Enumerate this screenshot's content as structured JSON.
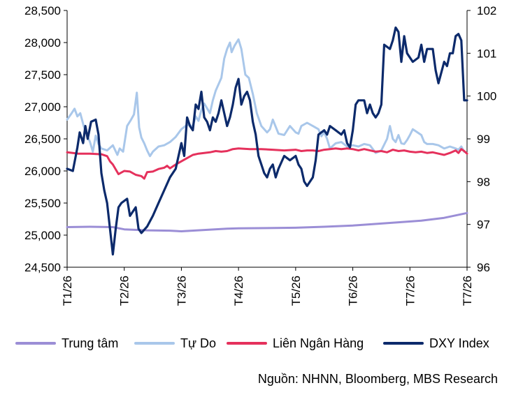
{
  "chart_data": {
    "type": "line",
    "x_ticks": [
      "T1/26",
      "T2/26",
      "T3/26",
      "T4/26",
      "T5/26",
      "T6/26",
      "T7/26",
      "T7/26"
    ],
    "y_left": {
      "ylim": [
        24500,
        28500
      ],
      "ticks": [
        "24,500",
        "25,000",
        "25,500",
        "26,000",
        "26,500",
        "27,000",
        "27,500",
        "28,000",
        "28,500"
      ]
    },
    "y_right": {
      "ylim": [
        96,
        102
      ],
      "ticks": [
        "96",
        "97",
        "98",
        "99",
        "100",
        "101",
        "102"
      ]
    },
    "x_range": [
      0,
      7
    ],
    "grid": false,
    "legend_position": "bottom",
    "series": [
      {
        "name": "Trung tâm",
        "axis": "left",
        "color": "#9b8ed6",
        "points": [
          [
            0,
            25125
          ],
          [
            0.4,
            25130
          ],
          [
            0.8,
            25125
          ],
          [
            1.0,
            25090
          ],
          [
            1.4,
            25075
          ],
          [
            1.8,
            25070
          ],
          [
            2.0,
            25060
          ],
          [
            2.4,
            25080
          ],
          [
            2.8,
            25100
          ],
          [
            3.0,
            25105
          ],
          [
            3.5,
            25110
          ],
          [
            4.0,
            25115
          ],
          [
            4.5,
            25130
          ],
          [
            5.0,
            25150
          ],
          [
            5.5,
            25180
          ],
          [
            5.8,
            25200
          ],
          [
            6.2,
            25225
          ],
          [
            6.6,
            25270
          ],
          [
            7.0,
            25345
          ]
        ]
      },
      {
        "name": "Tự Do",
        "axis": "left",
        "color": "#a9c7ea",
        "points": [
          [
            0,
            26800
          ],
          [
            0.08,
            26900
          ],
          [
            0.13,
            26970
          ],
          [
            0.18,
            26850
          ],
          [
            0.23,
            26900
          ],
          [
            0.29,
            26700
          ],
          [
            0.33,
            26600
          ],
          [
            0.4,
            26450
          ],
          [
            0.45,
            26300
          ],
          [
            0.5,
            26550
          ],
          [
            0.55,
            26420
          ],
          [
            0.6,
            26350
          ],
          [
            0.7,
            26320
          ],
          [
            0.8,
            26400
          ],
          [
            0.88,
            26250
          ],
          [
            0.92,
            26350
          ],
          [
            0.98,
            26300
          ],
          [
            1.05,
            26700
          ],
          [
            1.12,
            26800
          ],
          [
            1.17,
            26880
          ],
          [
            1.22,
            27220
          ],
          [
            1.26,
            26680
          ],
          [
            1.3,
            26520
          ],
          [
            1.35,
            26430
          ],
          [
            1.4,
            26320
          ],
          [
            1.45,
            26230
          ],
          [
            1.5,
            26300
          ],
          [
            1.6,
            26380
          ],
          [
            1.7,
            26400
          ],
          [
            1.8,
            26450
          ],
          [
            1.9,
            26530
          ],
          [
            2.0,
            26650
          ],
          [
            2.1,
            26720
          ],
          [
            2.2,
            26700
          ],
          [
            2.25,
            26850
          ],
          [
            2.3,
            26780
          ],
          [
            2.35,
            26950
          ],
          [
            2.4,
            27050
          ],
          [
            2.5,
            26900
          ],
          [
            2.55,
            27100
          ],
          [
            2.6,
            27250
          ],
          [
            2.7,
            27450
          ],
          [
            2.75,
            27750
          ],
          [
            2.8,
            27900
          ],
          [
            2.85,
            28000
          ],
          [
            2.88,
            27850
          ],
          [
            2.93,
            27950
          ],
          [
            3.0,
            28050
          ],
          [
            3.05,
            27900
          ],
          [
            3.12,
            27500
          ],
          [
            3.18,
            27450
          ],
          [
            3.25,
            27200
          ],
          [
            3.32,
            26900
          ],
          [
            3.4,
            26700
          ],
          [
            3.5,
            26600
          ],
          [
            3.55,
            26650
          ],
          [
            3.6,
            26800
          ],
          [
            3.7,
            26580
          ],
          [
            3.8,
            26560
          ],
          [
            3.9,
            26700
          ],
          [
            4.0,
            26600
          ],
          [
            4.05,
            26580
          ],
          [
            4.1,
            26700
          ],
          [
            4.2,
            26750
          ],
          [
            4.3,
            26700
          ],
          [
            4.4,
            26650
          ],
          [
            4.45,
            26540
          ],
          [
            4.5,
            26600
          ],
          [
            4.55,
            26500
          ],
          [
            4.6,
            26350
          ],
          [
            4.7,
            26430
          ],
          [
            4.8,
            26450
          ],
          [
            4.9,
            26380
          ],
          [
            5.0,
            26400
          ],
          [
            5.1,
            26380
          ],
          [
            5.2,
            26420
          ],
          [
            5.3,
            26400
          ],
          [
            5.4,
            26280
          ],
          [
            5.5,
            26320
          ],
          [
            5.6,
            26500
          ],
          [
            5.65,
            26700
          ],
          [
            5.7,
            26500
          ],
          [
            5.75,
            26450
          ],
          [
            5.8,
            26560
          ],
          [
            5.85,
            26430
          ],
          [
            5.9,
            26420
          ],
          [
            5.95,
            26480
          ],
          [
            6.0,
            26560
          ],
          [
            6.05,
            26650
          ],
          [
            6.1,
            26620
          ],
          [
            6.2,
            26560
          ],
          [
            6.25,
            26450
          ],
          [
            6.3,
            26420
          ],
          [
            6.4,
            26420
          ],
          [
            6.5,
            26400
          ],
          [
            6.6,
            26350
          ],
          [
            6.7,
            26380
          ],
          [
            6.8,
            26350
          ],
          [
            6.85,
            26330
          ],
          [
            6.9,
            26380
          ],
          [
            6.95,
            26300
          ]
        ]
      },
      {
        "name": "Liên Ngân Hàng",
        "axis": "left",
        "color": "#e5315c",
        "points": [
          [
            0,
            26290
          ],
          [
            0.2,
            26270
          ],
          [
            0.4,
            26270
          ],
          [
            0.6,
            26260
          ],
          [
            0.7,
            26230
          ],
          [
            0.75,
            26150
          ],
          [
            0.8,
            26100
          ],
          [
            0.9,
            25950
          ],
          [
            1.0,
            26000
          ],
          [
            1.1,
            25990
          ],
          [
            1.2,
            25940
          ],
          [
            1.3,
            25920
          ],
          [
            1.35,
            25880
          ],
          [
            1.4,
            25980
          ],
          [
            1.5,
            25990
          ],
          [
            1.6,
            26030
          ],
          [
            1.7,
            26050
          ],
          [
            1.75,
            26080
          ],
          [
            1.8,
            26040
          ],
          [
            1.9,
            26100
          ],
          [
            2.0,
            26150
          ],
          [
            2.1,
            26200
          ],
          [
            2.2,
            26250
          ],
          [
            2.3,
            26270
          ],
          [
            2.4,
            26280
          ],
          [
            2.5,
            26290
          ],
          [
            2.6,
            26310
          ],
          [
            2.7,
            26300
          ],
          [
            2.8,
            26310
          ],
          [
            2.9,
            26340
          ],
          [
            3.0,
            26350
          ],
          [
            3.2,
            26340
          ],
          [
            3.4,
            26340
          ],
          [
            3.6,
            26330
          ],
          [
            3.8,
            26320
          ],
          [
            4.0,
            26330
          ],
          [
            4.1,
            26310
          ],
          [
            4.2,
            26320
          ],
          [
            4.3,
            26320
          ],
          [
            4.4,
            26310
          ],
          [
            4.5,
            26330
          ],
          [
            4.6,
            26340
          ],
          [
            4.7,
            26350
          ],
          [
            4.8,
            26340
          ],
          [
            4.9,
            26350
          ],
          [
            5.0,
            26340
          ],
          [
            5.1,
            26320
          ],
          [
            5.2,
            26340
          ],
          [
            5.3,
            26320
          ],
          [
            5.4,
            26300
          ],
          [
            5.5,
            26310
          ],
          [
            5.6,
            26290
          ],
          [
            5.7,
            26330
          ],
          [
            5.8,
            26310
          ],
          [
            5.9,
            26320
          ],
          [
            6.0,
            26300
          ],
          [
            6.1,
            26290
          ],
          [
            6.2,
            26300
          ],
          [
            6.3,
            26280
          ],
          [
            6.4,
            26290
          ],
          [
            6.5,
            26270
          ],
          [
            6.6,
            26250
          ],
          [
            6.7,
            26280
          ],
          [
            6.8,
            26320
          ],
          [
            6.85,
            26280
          ],
          [
            6.9,
            26340
          ],
          [
            6.95,
            26310
          ],
          [
            7.0,
            26270
          ]
        ]
      },
      {
        "name": "DXY Index",
        "axis": "right",
        "color": "#0c2a6b",
        "points": [
          [
            0,
            98.3
          ],
          [
            0.1,
            98.25
          ],
          [
            0.18,
            98.8
          ],
          [
            0.22,
            99.15
          ],
          [
            0.28,
            98.9
          ],
          [
            0.32,
            99.3
          ],
          [
            0.36,
            99.0
          ],
          [
            0.42,
            99.4
          ],
          [
            0.5,
            99.45
          ],
          [
            0.55,
            99.1
          ],
          [
            0.6,
            98.2
          ],
          [
            0.65,
            97.8
          ],
          [
            0.7,
            97.5
          ],
          [
            0.8,
            96.3
          ],
          [
            0.85,
            96.9
          ],
          [
            0.9,
            97.4
          ],
          [
            0.95,
            97.5
          ],
          [
            1.05,
            97.6
          ],
          [
            1.1,
            97.2
          ],
          [
            1.2,
            97.4
          ],
          [
            1.25,
            96.9
          ],
          [
            1.3,
            96.8
          ],
          [
            1.4,
            96.95
          ],
          [
            1.5,
            97.2
          ],
          [
            1.6,
            97.5
          ],
          [
            1.7,
            97.8
          ],
          [
            1.8,
            98.1
          ],
          [
            1.9,
            98.3
          ],
          [
            2.0,
            98.9
          ],
          [
            2.05,
            98.6
          ],
          [
            2.1,
            99.5
          ],
          [
            2.15,
            99.3
          ],
          [
            2.2,
            99.2
          ],
          [
            2.25,
            99.8
          ],
          [
            2.3,
            99.7
          ],
          [
            2.35,
            100.1
          ],
          [
            2.4,
            99.5
          ],
          [
            2.45,
            99.4
          ],
          [
            2.5,
            99.2
          ],
          [
            2.55,
            99.5
          ],
          [
            2.6,
            99.4
          ],
          [
            2.65,
            99.6
          ],
          [
            2.7,
            99.9
          ],
          [
            2.75,
            99.6
          ],
          [
            2.8,
            99.3
          ],
          [
            2.85,
            99.5
          ],
          [
            2.9,
            99.8
          ],
          [
            2.95,
            100.2
          ],
          [
            3.0,
            100.4
          ],
          [
            3.05,
            99.8
          ],
          [
            3.1,
            100.0
          ],
          [
            3.15,
            100.1
          ],
          [
            3.2,
            99.9
          ],
          [
            3.25,
            99.4
          ],
          [
            3.3,
            99.1
          ],
          [
            3.35,
            98.6
          ],
          [
            3.4,
            98.4
          ],
          [
            3.45,
            98.2
          ],
          [
            3.5,
            98.1
          ],
          [
            3.55,
            98.3
          ],
          [
            3.6,
            98.4
          ],
          [
            3.65,
            98.1
          ],
          [
            3.7,
            98.3
          ],
          [
            3.8,
            98.6
          ],
          [
            3.9,
            98.5
          ],
          [
            4.0,
            98.6
          ],
          [
            4.05,
            98.4
          ],
          [
            4.1,
            98.3
          ],
          [
            4.15,
            98.0
          ],
          [
            4.2,
            97.9
          ],
          [
            4.3,
            98.1
          ],
          [
            4.35,
            98.5
          ],
          [
            4.4,
            99.1
          ],
          [
            4.5,
            99.2
          ],
          [
            4.55,
            99.1
          ],
          [
            4.6,
            99.3
          ],
          [
            4.7,
            99.2
          ],
          [
            4.8,
            99.1
          ],
          [
            4.85,
            99.2
          ],
          [
            4.9,
            98.9
          ],
          [
            4.95,
            98.8
          ],
          [
            5.0,
            99.2
          ],
          [
            5.05,
            99.8
          ],
          [
            5.1,
            99.9
          ],
          [
            5.2,
            99.9
          ],
          [
            5.25,
            99.6
          ],
          [
            5.3,
            99.8
          ],
          [
            5.35,
            99.6
          ],
          [
            5.4,
            99.5
          ],
          [
            5.45,
            99.6
          ],
          [
            5.5,
            99.8
          ],
          [
            5.55,
            101.2
          ],
          [
            5.65,
            101.1
          ],
          [
            5.7,
            101.3
          ],
          [
            5.75,
            101.6
          ],
          [
            5.8,
            101.5
          ],
          [
            5.85,
            100.8
          ],
          [
            5.9,
            101.4
          ],
          [
            5.95,
            101.0
          ],
          [
            6.05,
            100.8
          ],
          [
            6.15,
            100.9
          ],
          [
            6.2,
            101.2
          ],
          [
            6.25,
            100.8
          ],
          [
            6.3,
            101.1
          ],
          [
            6.4,
            101.1
          ],
          [
            6.45,
            100.6
          ],
          [
            6.5,
            100.3
          ],
          [
            6.6,
            100.8
          ],
          [
            6.65,
            100.7
          ],
          [
            6.7,
            101.0
          ],
          [
            6.75,
            101.0
          ],
          [
            6.8,
            101.4
          ],
          [
            6.85,
            101.45
          ],
          [
            6.9,
            101.3
          ],
          [
            6.95,
            99.9
          ],
          [
            7.0,
            99.9
          ]
        ]
      }
    ]
  },
  "legend": [
    {
      "label": "Trung tâm",
      "color": "#9b8ed6"
    },
    {
      "label": "Tự Do",
      "color": "#a9c7ea"
    },
    {
      "label": "Liên Ngân Hàng",
      "color": "#e5315c"
    },
    {
      "label": "DXY Index",
      "color": "#0c2a6b"
    }
  ],
  "source": "Nguồn: NHNN, Bloomberg, MBS Research"
}
